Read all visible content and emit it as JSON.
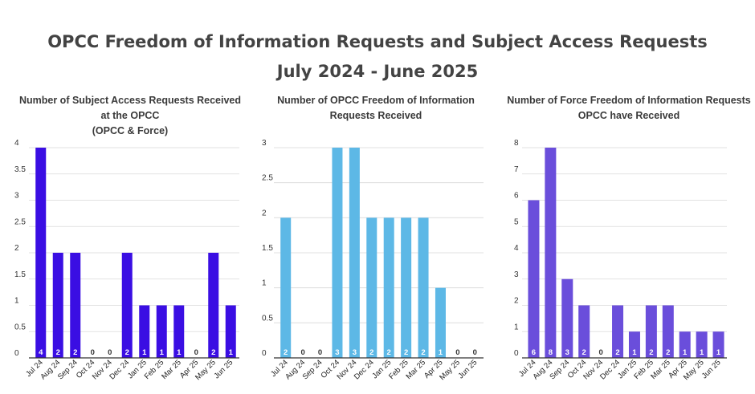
{
  "title_line1": "OPCC Freedom of Information Requests and Subject Access Requests",
  "title_line2": "July 2024 - June 2025",
  "chart_data": [
    {
      "type": "bar",
      "title_lines": [
        "Number of Subject Access Requests Received",
        "at the OPCC",
        "(OPCC & Force)"
      ],
      "categories": [
        "Jul 24",
        "Aug 24",
        "Sep 24",
        "Oct 24",
        "Nov 24",
        "Dec 24",
        "Jan 25",
        "Feb 25",
        "Mar 25",
        "Apr 25",
        "May 25",
        "Jun 25"
      ],
      "values": [
        4,
        2,
        2,
        0,
        0,
        2,
        1,
        1,
        1,
        0,
        2,
        1
      ],
      "yticks": [
        "0",
        "0.5",
        "1",
        "1.5",
        "2",
        "2.5",
        "3",
        "3.5",
        "4"
      ],
      "ylim": [
        0,
        4
      ],
      "color": "#3a0ee3",
      "grid": true
    },
    {
      "type": "bar",
      "title_lines": [
        "Number of OPCC Freedom of Information",
        "Requests Received"
      ],
      "categories": [
        "Jul 24",
        "Aug 24",
        "Sep 24",
        "Oct 24",
        "Nov 24",
        "Dec 24",
        "Jan 25",
        "Feb 25",
        "Mar 25",
        "Apr 25",
        "May 25",
        "Jun 25"
      ],
      "values": [
        2,
        0,
        0,
        3,
        3,
        2,
        2,
        2,
        2,
        1,
        0,
        0
      ],
      "yticks": [
        "0",
        "0.5",
        "1",
        "1.5",
        "2",
        "2.5",
        "3"
      ],
      "ylim": [
        0,
        3
      ],
      "color": "#5db8e6",
      "grid": true
    },
    {
      "type": "bar",
      "title_lines": [
        "Number of Force Freedom of Information Requests",
        "OPCC have Received"
      ],
      "categories": [
        "Jul 24",
        "Aug 24",
        "Sep 24",
        "Oct 24",
        "Nov 24",
        "Dec 24",
        "Jan 25",
        "Feb 25",
        "Mar 25",
        "Apr 25",
        "May 25",
        "Jun 25"
      ],
      "values": [
        6,
        8,
        3,
        2,
        0,
        2,
        1,
        2,
        2,
        1,
        1,
        1
      ],
      "yticks": [
        "0",
        "1",
        "2",
        "3",
        "4",
        "5",
        "6",
        "7",
        "8"
      ],
      "ylim": [
        0,
        8
      ],
      "color": "#6a4edb",
      "grid": true
    }
  ]
}
